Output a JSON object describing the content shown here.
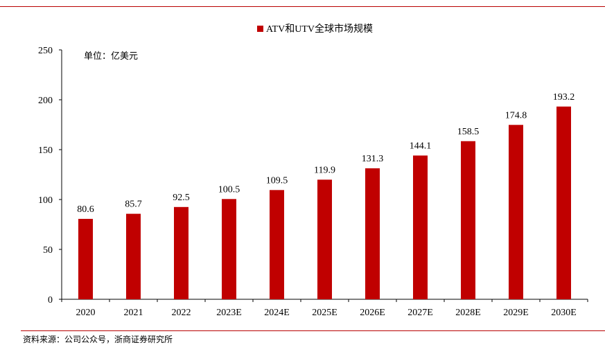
{
  "chart_data": {
    "type": "bar",
    "categories": [
      "2020",
      "2021",
      "2022",
      "2023E",
      "2024E",
      "2025E",
      "2026E",
      "2027E",
      "2028E",
      "2029E",
      "2030E"
    ],
    "series": [
      {
        "name": "ATV和UTV全球市场规模",
        "values": [
          80.6,
          85.7,
          92.5,
          100.5,
          109.5,
          119.9,
          131.3,
          144.1,
          158.5,
          174.8,
          193.2
        ],
        "color": "#c00000"
      }
    ],
    "value_labels": [
      "80.6",
      "85.7",
      "92.5",
      "100.5",
      "109.5",
      "119.9",
      "131.3",
      "144.1",
      "158.5",
      "174.8",
      "193.2"
    ],
    "yticks": [
      0,
      50,
      100,
      150,
      200,
      250
    ],
    "ylim": [
      0,
      250
    ],
    "unit_label": "单位：亿美元",
    "legend_position": "top-center",
    "grid": false
  },
  "source_note": "资料来源：公司公众号，浙商证券研究所"
}
